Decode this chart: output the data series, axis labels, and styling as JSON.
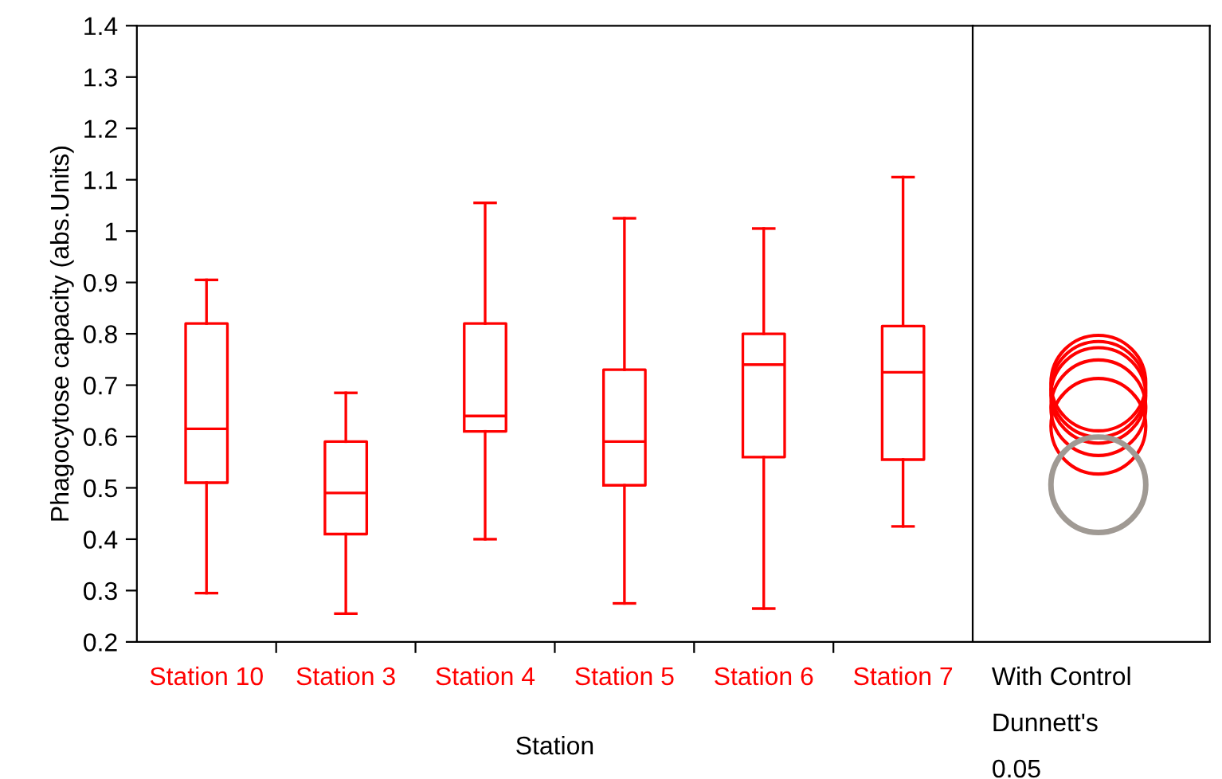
{
  "chart_data": [
    {
      "type": "box",
      "xlabel": "Station",
      "ylabel": "Phagocytose capacity (abs.Units)",
      "categories": [
        "Station 10",
        "Station 3",
        "Station 4",
        "Station 5",
        "Station 6",
        "Station 7"
      ],
      "color": "#ff0000",
      "boxes": [
        {
          "low": 0.295,
          "q1": 0.51,
          "median": 0.615,
          "q3": 0.82,
          "high": 0.905
        },
        {
          "low": 0.255,
          "q1": 0.41,
          "median": 0.49,
          "q3": 0.59,
          "high": 0.685
        },
        {
          "low": 0.4,
          "q1": 0.61,
          "median": 0.64,
          "q3": 0.82,
          "high": 1.055
        },
        {
          "low": 0.275,
          "q1": 0.505,
          "median": 0.59,
          "q3": 0.73,
          "high": 1.025
        },
        {
          "low": 0.265,
          "q1": 0.56,
          "median": 0.74,
          "q3": 0.8,
          "high": 1.005
        },
        {
          "low": 0.425,
          "q1": 0.555,
          "median": 0.725,
          "q3": 0.815,
          "high": 1.105
        }
      ],
      "ylim": [
        0.2,
        1.4
      ],
      "yticks": [
        0.2,
        0.3,
        0.4,
        0.5,
        0.6,
        0.7,
        0.8,
        0.9,
        1,
        1.1,
        1.2,
        1.3,
        1.4
      ],
      "grid": false
    },
    {
      "type": "other",
      "annotations": [
        "With Control",
        "Dunnett's",
        "0.05"
      ]
    }
  ]
}
